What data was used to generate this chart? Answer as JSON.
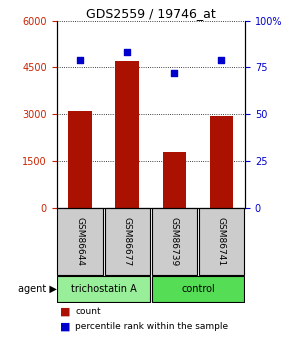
{
  "title": "GDS2559 / 19746_at",
  "samples": [
    "GSM86644",
    "GSM86677",
    "GSM86739",
    "GSM86741"
  ],
  "counts": [
    3100,
    4700,
    1800,
    2950
  ],
  "percentiles": [
    79,
    83,
    72,
    79
  ],
  "bar_color": "#AA1100",
  "dot_color": "#0000CC",
  "ylim_left": [
    0,
    6000
  ],
  "ylim_right": [
    0,
    100
  ],
  "yticks_left": [
    0,
    1500,
    3000,
    4500,
    6000
  ],
  "yticks_right": [
    0,
    25,
    50,
    75,
    100
  ],
  "ytick_labels_right": [
    "0",
    "25",
    "50",
    "75",
    "100%"
  ],
  "groups": [
    {
      "label": "trichostatin A",
      "indices": [
        0,
        1
      ],
      "color": "#99EE99"
    },
    {
      "label": "control",
      "indices": [
        2,
        3
      ],
      "color": "#55DD55"
    }
  ],
  "agent_label": "agent",
  "agent_arrow": "▶",
  "legend_count_label": "count",
  "legend_pct_label": "percentile rank within the sample",
  "background_color": "#FFFFFF",
  "plot_bg_color": "#FFFFFF",
  "tick_color_left": "#CC2200",
  "tick_color_right": "#0000CC",
  "grid_color": "#000000",
  "sample_box_color": "#CCCCCC",
  "bar_width": 0.5
}
